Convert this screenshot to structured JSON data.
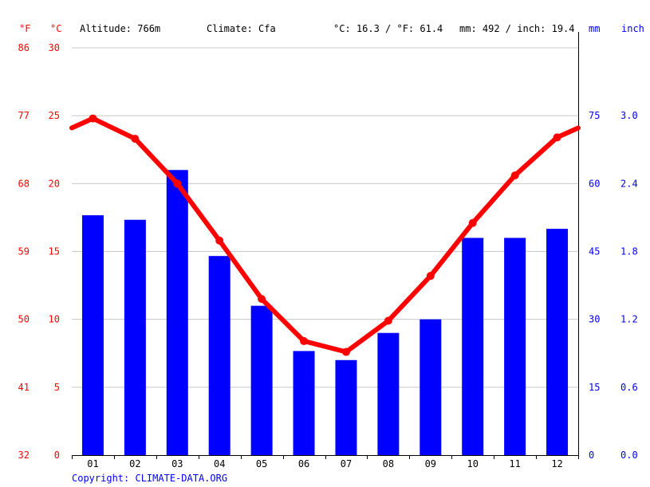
{
  "header": {
    "unit_f": "°F",
    "unit_c": "°C",
    "altitude": "Altitude: 766m",
    "climate": "Climate: Cfa",
    "temp_avg": "°C: 16.3 / °F: 61.4",
    "precip_total": "mm: 492 / inch: 19.4",
    "unit_mm": "mm",
    "unit_inch": "inch"
  },
  "copyright": "Copyright: CLIMATE-DATA.ORG",
  "colors": {
    "temperature": "#ff0000",
    "precipitation": "#0000ff",
    "grid": "#c8c8c8",
    "axis": "#000000"
  },
  "chart_data": {
    "type": "bar+line",
    "categories": [
      "01",
      "02",
      "03",
      "04",
      "05",
      "06",
      "07",
      "08",
      "09",
      "10",
      "11",
      "12"
    ],
    "series": [
      {
        "type": "bar",
        "axis": "right",
        "values": [
          53,
          52,
          63,
          44,
          33,
          23,
          21,
          27,
          30,
          48,
          48,
          50
        ]
      },
      {
        "type": "line",
        "axis": "left",
        "values": [
          24.8,
          23.3,
          20.0,
          15.8,
          11.5,
          8.4,
          7.6,
          9.9,
          13.2,
          17.1,
          20.6,
          23.4
        ]
      }
    ],
    "y_left_celsius": {
      "range": [
        0,
        30
      ],
      "ticks": [
        "0",
        "5",
        "10",
        "15",
        "20",
        "25",
        "30"
      ]
    },
    "y_left_fahrenheit": {
      "ticks": [
        "32",
        "41",
        "50",
        "59",
        "68",
        "77",
        "86"
      ]
    },
    "y_right_mm": {
      "range": [
        0,
        90
      ],
      "ticks": [
        "0",
        "15",
        "30",
        "45",
        "60",
        "75"
      ]
    },
    "y_right_inch": {
      "ticks": [
        "0.0",
        "0.6",
        "1.2",
        "1.8",
        "2.4",
        "3.0"
      ]
    },
    "temperature_edges": {
      "start": 24.1,
      "end": 24.1
    },
    "grid": true
  }
}
